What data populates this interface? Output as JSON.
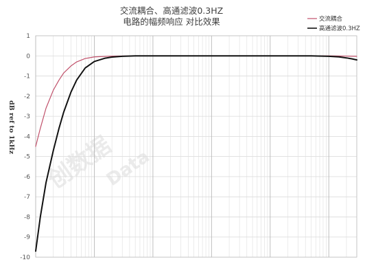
{
  "chart_data": {
    "type": "line",
    "title_lines": [
      "交流耦合、高通滤波0.3HZ",
      "电路的幅频响应 对比效果"
    ],
    "ylabel": "dB ref to 1kHz",
    "xlabel": "",
    "x_scale": "log",
    "ylim": [
      -10,
      1
    ],
    "yticks": [
      "1",
      "0",
      "-1",
      "-2",
      "-3",
      "-4",
      "-5",
      "-6",
      "-7",
      "-8",
      "-9",
      "-10"
    ],
    "grid": true,
    "legend_position": "top-right",
    "series": [
      {
        "name": "交流耦合",
        "color": "#c0506a",
        "points": [
          [
            0.1,
            -4.5
          ],
          [
            0.12,
            -3.6
          ],
          [
            0.15,
            -2.6
          ],
          [
            0.2,
            -1.7
          ],
          [
            0.25,
            -1.2
          ],
          [
            0.3,
            -0.85
          ],
          [
            0.4,
            -0.5
          ],
          [
            0.5,
            -0.3
          ],
          [
            0.7,
            -0.13
          ],
          [
            1,
            -0.05
          ],
          [
            2,
            -0.01
          ],
          [
            5,
            0
          ],
          [
            10,
            0
          ],
          [
            100,
            0
          ],
          [
            1000,
            0
          ],
          [
            10000,
            0
          ],
          [
            20000,
            -0.01
          ],
          [
            30000,
            -0.02
          ]
        ]
      },
      {
        "name": "高通滤波0.3HZ",
        "color": "#111111",
        "points": [
          [
            0.1,
            -9.7
          ],
          [
            0.12,
            -8.0
          ],
          [
            0.15,
            -6.3
          ],
          [
            0.2,
            -4.7
          ],
          [
            0.25,
            -3.6
          ],
          [
            0.3,
            -2.8
          ],
          [
            0.4,
            -1.8
          ],
          [
            0.5,
            -1.2
          ],
          [
            0.7,
            -0.6
          ],
          [
            1,
            -0.28
          ],
          [
            1.5,
            -0.12
          ],
          [
            2,
            -0.06
          ],
          [
            3,
            -0.02
          ],
          [
            5,
            0
          ],
          [
            10,
            0
          ],
          [
            100,
            0
          ],
          [
            1000,
            0
          ],
          [
            5000,
            0
          ],
          [
            10000,
            -0.02
          ],
          [
            15000,
            -0.05
          ],
          [
            20000,
            -0.1
          ],
          [
            25000,
            -0.15
          ],
          [
            30000,
            -0.2
          ]
        ]
      }
    ]
  },
  "watermark": {
    "cn": "创数据",
    "en": "Data"
  }
}
